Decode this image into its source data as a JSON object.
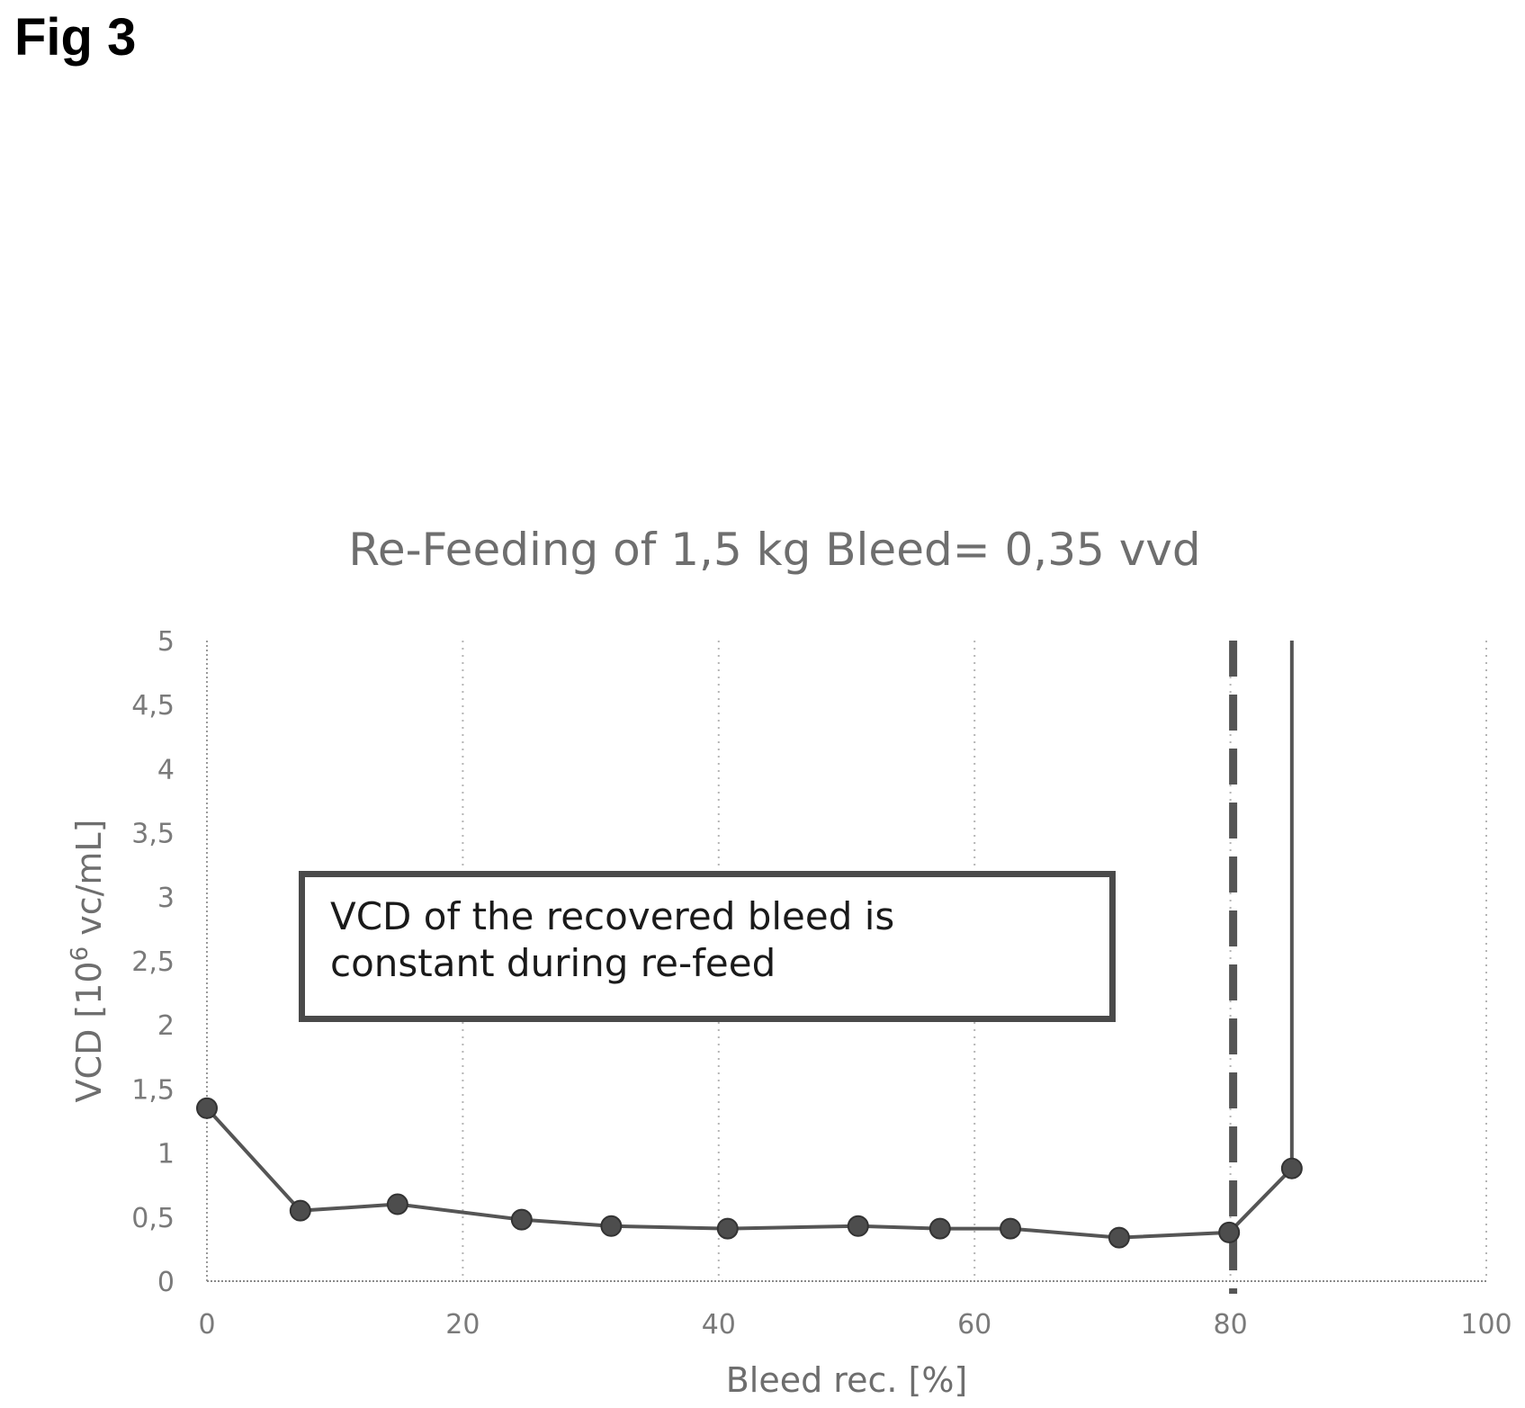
{
  "figure_label": "Fig 3",
  "annotation": {
    "line1": "VCD of the recovered bleed is",
    "line2": "constant during re-feed"
  },
  "chart_data": {
    "type": "line",
    "title": "Re-Feeding of 1,5 kg Bleed= 0,35 vvd",
    "xlabel": "Bleed rec. [%]",
    "ylabel_prefix": "VCD [10",
    "ylabel_sup": "6",
    "ylabel_suffix": " vc/mL]",
    "xlim": [
      0,
      100
    ],
    "ylim": [
      0,
      5
    ],
    "x_ticks": [
      0,
      20,
      40,
      60,
      80,
      100
    ],
    "x_tick_labels": [
      "0",
      "20",
      "40",
      "60",
      "80",
      "100"
    ],
    "y_ticks": [
      0,
      0.5,
      1,
      1.5,
      2,
      2.5,
      3,
      3.5,
      4,
      4.5,
      5
    ],
    "y_tick_labels": [
      "0",
      "0,5",
      "1",
      "1,5",
      "2",
      "2,5",
      "3",
      "3,5",
      "4",
      "4,5",
      "5"
    ],
    "grid": "dotted vertical",
    "series": [
      {
        "x": [
          0,
          7.3,
          14.9,
          24.6,
          31.6,
          40.7,
          50.9,
          57.3,
          62.8,
          71.3,
          79.9,
          84.8
        ],
        "y": [
          1.35,
          0.55,
          0.6,
          0.48,
          0.43,
          0.41,
          0.43,
          0.41,
          0.41,
          0.34,
          0.38,
          0.88
        ],
        "color": "#555555"
      }
    ],
    "vertical_line_series": {
      "x": 84.8,
      "y_from": 0.88,
      "y_to": 5
    },
    "reference_line": {
      "x": 80,
      "style": "dashed",
      "color": "#555555"
    }
  }
}
